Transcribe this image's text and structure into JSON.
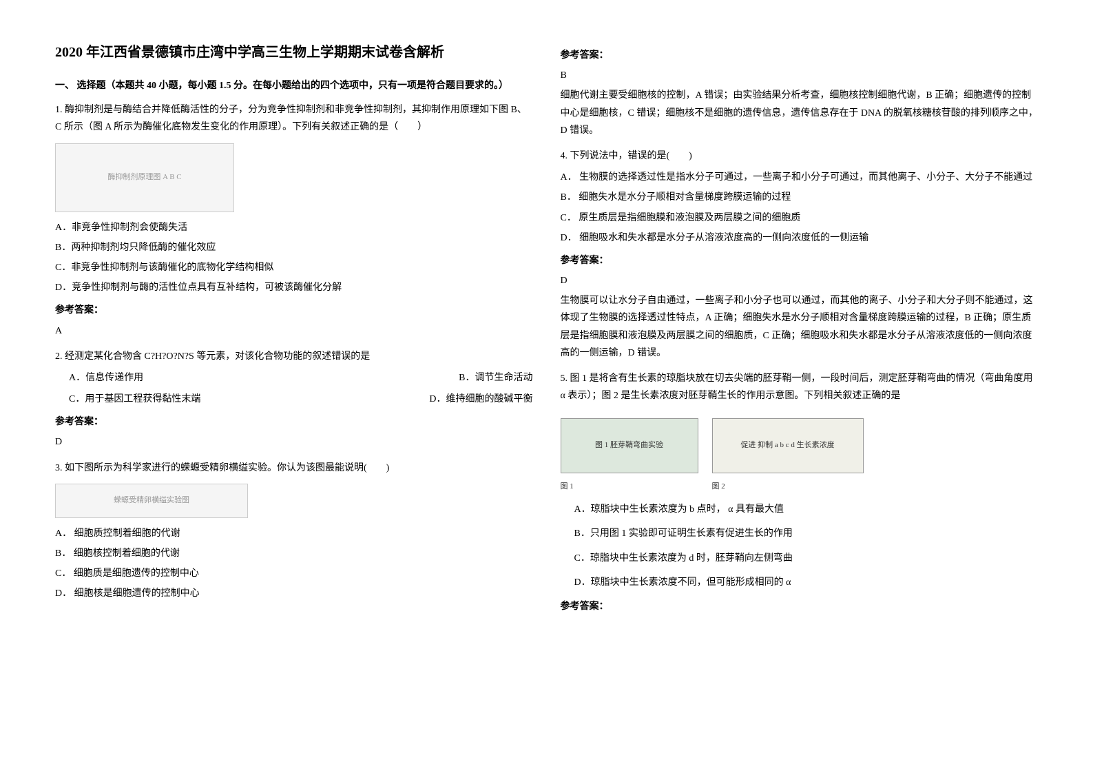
{
  "title": "2020 年江西省景德镇市庄湾中学高三生物上学期期末试卷含解析",
  "section1_header": "一、 选择题（本题共 40 小题，每小题 1.5 分。在每小题给出的四个选项中，只有一项是符合题目要求的。）",
  "q1": {
    "stem": "1. 酶抑制剂是与酶结合并降低酶活性的分子，分为竞争性抑制剂和非竞争性抑制剂，其抑制作用原理如下图 B、C 所示（图 A 所示为酶催化底物发生变化的作用原理）。下列有关叙述正确的是（　　）",
    "img_alt": "酶抑制剂原理图 A B C",
    "optA": "A．非竞争性抑制剂会使酶失活",
    "optB": "B．两种抑制剂均只降低酶的催化效应",
    "optC": "C．非竞争性抑制剂与该酶催化的底物化学结构相似",
    "optD": "D．竞争性抑制剂与酶的活性位点具有互补结构，可被该酶催化分解",
    "answer_label": "参考答案：",
    "answer": "A"
  },
  "q2": {
    "stem": "2. 经测定某化合物含 C?H?O?N?S 等元素，对该化合物功能的叙述错误的是",
    "optA": "A．信息传递作用",
    "optB": "B．调节生命活动",
    "optC": "C．用于基因工程获得黏性末端",
    "optD": "D．维持细胞的酸碱平衡",
    "answer_label": "参考答案：",
    "answer": "D"
  },
  "q3": {
    "stem": "3. 如下图所示为科学家进行的蝾螈受精卵横缢实验。你认为该图最能说明(　　)",
    "img_alt": "蝾螈受精卵横缢实验图",
    "optA": "A． 细胞质控制着细胞的代谢",
    "optB": "B． 细胞核控制着细胞的代谢",
    "optC": "C． 细胞质是细胞遗传的控制中心",
    "optD": "D． 细胞核是细胞遗传的控制中心",
    "answer_label": "参考答案：",
    "answer": "B",
    "explanation": "细胞代谢主要受细胞核的控制，A 错误；由实验结果分析考查，细胞核控制细胞代谢，B 正确；细胞遗传的控制中心是细胞核，C 错误；细胞核不是细胞的遗传信息，遗传信息存在于 DNA 的脱氧核糖核苷酸的排列顺序之中，D 错误。"
  },
  "q4": {
    "stem": "4. 下列说法中，错误的是(　　)",
    "optA": "A． 生物膜的选择透过性是指水分子可通过，一些离子和小分子可通过，而其他离子、小分子、大分子不能通过",
    "optB": "B． 细胞失水是水分子顺相对含量梯度跨膜运输的过程",
    "optC": "C． 原生质层是指细胞膜和液泡膜及两层膜之间的细胞质",
    "optD": "D． 细胞吸水和失水都是水分子从溶液浓度高的一侧向浓度低的一侧运输",
    "answer_label": "参考答案：",
    "answer": "D",
    "explanation": "生物膜可以让水分子自由通过，一些离子和小分子也可以通过，而其他的离子、小分子和大分子则不能通过，这体现了生物膜的选择透过性特点，A 正确；细胞失水是水分子顺相对含量梯度跨膜运输的过程，B 正确；原生质层是指细胞膜和液泡膜及两层膜之间的细胞质，C 正确；细胞吸水和失水都是水分子从溶液浓度低的一侧向浓度高的一侧运输，D 错误。"
  },
  "q5": {
    "stem": "5. 图 1 是将含有生长素的琼脂块放在切去尖端的胚芽鞘一侧，一段时间后，测定胚芽鞘弯曲的情况（弯曲角度用 α 表示）；图 2 是生长素浓度对胚芽鞘生长的作用示意图。下列相关叙述正确的是",
    "img1_alt": "图 1 胚芽鞘弯曲实验",
    "img2_alt": "图 2 生长素浓度作用曲线",
    "img1_label": "图 1",
    "img2_label": "图 2",
    "axis_labels": "促进 抑制 a b c d 生长素浓度",
    "optA": "A．琼脂块中生长素浓度为 b 点时， α 具有最大值",
    "optB": "B．只用图 1 实验即可证明生长素有促进生长的作用",
    "optC": "C．琼脂块中生长素浓度为 d 时，胚芽鞘向左侧弯曲",
    "optD": "D．琼脂块中生长素浓度不同，但可能形成相同的 α",
    "answer_label": "参考答案："
  }
}
